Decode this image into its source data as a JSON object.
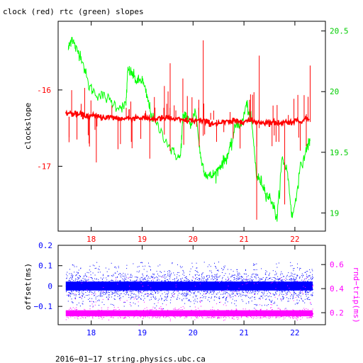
{
  "chart_data": [
    {
      "type": "line",
      "title": "clock (red) rtc (green) slopes",
      "xlabel": "",
      "ylabel": "clockslope",
      "y2label": "",
      "xlim": [
        17.35,
        22.6
      ],
      "ylim": [
        -17.85,
        -15.1
      ],
      "y2lim": [
        18.85,
        20.58
      ],
      "xticks": [
        18,
        19,
        20,
        21,
        22
      ],
      "yticks": [
        -16,
        -17
      ],
      "y2ticks": [
        20.5,
        20,
        19.5,
        19
      ],
      "colors": {
        "clock": "#ff0000",
        "rtc": "#00ff00",
        "axis": "#000000"
      },
      "series": [
        {
          "name": "clock",
          "axis": "left",
          "color": "#ff0000",
          "x": [
            17.5,
            17.8,
            18.1,
            18.4,
            18.6,
            18.9,
            19.2,
            19.5,
            19.8,
            20.1,
            20.4,
            20.7,
            21.0,
            21.3,
            21.6,
            21.9,
            22.3
          ],
          "y": [
            -16.3,
            -16.33,
            -16.35,
            -16.36,
            -16.38,
            -16.36,
            -16.38,
            -16.37,
            -16.4,
            -16.4,
            -16.44,
            -16.42,
            -16.4,
            -16.42,
            -16.43,
            -16.42,
            -16.38
          ],
          "spikes": [
            {
              "x": 20.2,
              "lo": -16.6,
              "hi": -15.35
            },
            {
              "x": 21.3,
              "lo": -16.5,
              "hi": -15.55
            },
            {
              "x": 21.25,
              "lo": -17.7,
              "hi": -16.4
            },
            {
              "x": 19.55,
              "lo": -16.8,
              "hi": -15.65
            },
            {
              "x": 21.8,
              "lo": -17.5,
              "hi": -16.42
            },
            {
              "x": 18.1,
              "lo": -16.95,
              "hi": -16.3
            },
            {
              "x": 19.8,
              "lo": -16.3,
              "hi": -15.85
            },
            {
              "x": 22.3,
              "lo": -16.42,
              "hi": -15.68
            },
            {
              "x": 19.15,
              "lo": -16.9,
              "hi": -16.36
            }
          ]
        },
        {
          "name": "rtc",
          "axis": "right",
          "color": "#00ff00",
          "x": [
            17.55,
            17.62,
            17.7,
            17.8,
            17.95,
            18.1,
            18.3,
            18.5,
            18.68,
            18.72,
            18.8,
            18.9,
            19.0,
            19.1,
            19.2,
            19.4,
            19.6,
            19.75,
            19.8,
            19.85,
            19.95,
            20.05,
            20.15,
            20.25,
            20.35,
            20.45,
            20.55,
            20.65,
            20.75,
            20.85,
            20.95,
            21.05,
            21.15,
            21.25,
            21.35,
            21.45,
            21.55,
            21.65,
            21.75,
            21.85,
            21.95,
            22.1,
            22.25,
            22.3
          ],
          "y": [
            20.35,
            20.45,
            20.35,
            20.3,
            20.05,
            19.98,
            19.95,
            19.88,
            19.88,
            20.18,
            20.15,
            20.08,
            20.1,
            19.95,
            19.78,
            19.65,
            19.5,
            19.45,
            19.78,
            19.82,
            19.72,
            19.85,
            19.45,
            19.32,
            19.3,
            19.33,
            19.4,
            19.45,
            19.55,
            19.75,
            19.72,
            19.9,
            19.75,
            19.3,
            19.25,
            19.15,
            19.1,
            18.95,
            19.45,
            19.35,
            18.95,
            19.35,
            19.55,
            19.6
          ]
        }
      ]
    },
    {
      "type": "scatter",
      "title": "",
      "xlabel": "",
      "ylabel": "offset(ms)",
      "y2label": "rnd−trip(ms)",
      "xlim": [
        17.35,
        22.6
      ],
      "ylim": [
        -0.19,
        0.2
      ],
      "y2lim": [
        0.1,
        0.76
      ],
      "xticks": [
        18,
        19,
        20,
        21,
        22
      ],
      "yticks": [
        0.2,
        0.1,
        0,
        -0.1
      ],
      "y2ticks": [
        0.6,
        0.4,
        0.2
      ],
      "ytick_labels": [
        "0.2",
        "0.1",
        "0",
        "−0.1"
      ],
      "colors": {
        "offset": "#0000ff",
        "rndtrip": "#ff00ff"
      },
      "series": [
        {
          "name": "offset",
          "axis": "left",
          "color": "#0000ff",
          "center": 0.0,
          "core_spread": 0.018,
          "outer_spread": [
            -0.1,
            0.12
          ]
        },
        {
          "name": "rnd-trip",
          "axis": "right",
          "color": "#ff00ff",
          "center": 0.195,
          "core_spread": 0.012,
          "outer_spread": [
            0.16,
            0.5
          ]
        }
      ]
    }
  ],
  "footer": {
    "text": "2016−01−17 string.physics.ubc.ca"
  }
}
